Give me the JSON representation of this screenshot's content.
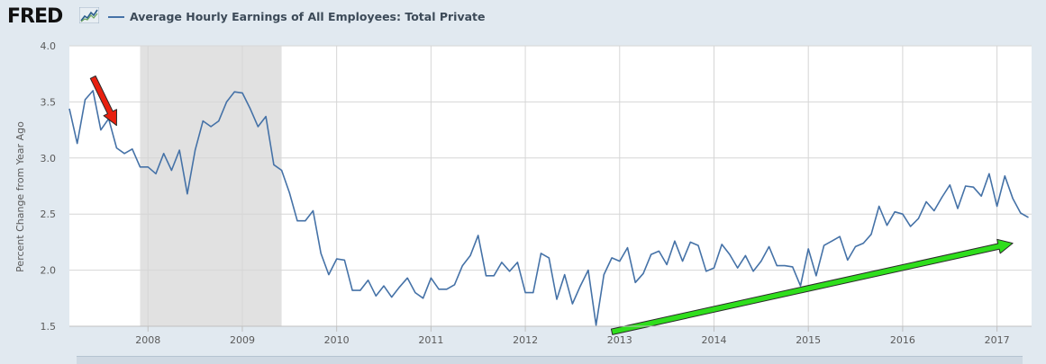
{
  "header": {
    "logo_text": "FRED",
    "logo_icon": "chart-line-icon",
    "legend_label": "Average Hourly Earnings of All Employees: Total Private",
    "legend_color": "#4572a7"
  },
  "chart_data": {
    "type": "line",
    "title": "Average Hourly Earnings of All Employees: Total Private",
    "ylabel": "Percent Change from Year Ago",
    "xlabel": "",
    "ylim": [
      1.5,
      4.0
    ],
    "y_ticks": [
      "1.5",
      "2.0",
      "2.5",
      "3.0",
      "3.5",
      "4.0"
    ],
    "x_ticks": [
      "2008",
      "2009",
      "2010",
      "2011",
      "2012",
      "2013",
      "2014",
      "2015",
      "2016",
      "2017"
    ],
    "grid": true,
    "series": [
      {
        "name": "Average Hourly Earnings of All Employees: Total Private",
        "color": "#4572a7",
        "points": [
          [
            "2007-03",
            3.44
          ],
          [
            "2007-04",
            3.13
          ],
          [
            "2007-05",
            3.52
          ],
          [
            "2007-06",
            3.6
          ],
          [
            "2007-07",
            3.25
          ],
          [
            "2007-08",
            3.35
          ],
          [
            "2007-09",
            3.09
          ],
          [
            "2007-10",
            3.04
          ],
          [
            "2007-11",
            3.08
          ],
          [
            "2007-12",
            2.92
          ],
          [
            "2008-01",
            2.92
          ],
          [
            "2008-02",
            2.86
          ],
          [
            "2008-03",
            3.04
          ],
          [
            "2008-04",
            2.89
          ],
          [
            "2008-05",
            3.07
          ],
          [
            "2008-06",
            2.68
          ],
          [
            "2008-07",
            3.07
          ],
          [
            "2008-08",
            3.33
          ],
          [
            "2008-09",
            3.28
          ],
          [
            "2008-10",
            3.33
          ],
          [
            "2008-11",
            3.5
          ],
          [
            "2008-12",
            3.59
          ],
          [
            "2009-01",
            3.58
          ],
          [
            "2009-02",
            3.44
          ],
          [
            "2009-03",
            3.28
          ],
          [
            "2009-04",
            3.37
          ],
          [
            "2009-05",
            2.94
          ],
          [
            "2009-06",
            2.89
          ],
          [
            "2009-07",
            2.69
          ],
          [
            "2009-08",
            2.44
          ],
          [
            "2009-09",
            2.44
          ],
          [
            "2009-10",
            2.53
          ],
          [
            "2009-11",
            2.15
          ],
          [
            "2009-12",
            1.96
          ],
          [
            "2010-01",
            2.1
          ],
          [
            "2010-02",
            2.09
          ],
          [
            "2010-03",
            1.82
          ],
          [
            "2010-04",
            1.82
          ],
          [
            "2010-05",
            1.91
          ],
          [
            "2010-06",
            1.77
          ],
          [
            "2010-07",
            1.86
          ],
          [
            "2010-08",
            1.76
          ],
          [
            "2010-09",
            1.85
          ],
          [
            "2010-10",
            1.93
          ],
          [
            "2010-11",
            1.8
          ],
          [
            "2010-12",
            1.75
          ],
          [
            "2011-01",
            1.93
          ],
          [
            "2011-02",
            1.83
          ],
          [
            "2011-03",
            1.83
          ],
          [
            "2011-04",
            1.87
          ],
          [
            "2011-05",
            2.04
          ],
          [
            "2011-06",
            2.13
          ],
          [
            "2011-07",
            2.31
          ],
          [
            "2011-08",
            1.95
          ],
          [
            "2011-09",
            1.95
          ],
          [
            "2011-10",
            2.07
          ],
          [
            "2011-11",
            1.99
          ],
          [
            "2011-12",
            2.07
          ],
          [
            "2012-01",
            1.8
          ],
          [
            "2012-02",
            1.8
          ],
          [
            "2012-03",
            2.15
          ],
          [
            "2012-04",
            2.11
          ],
          [
            "2012-05",
            1.74
          ],
          [
            "2012-06",
            1.96
          ],
          [
            "2012-07",
            1.7
          ],
          [
            "2012-08",
            1.86
          ],
          [
            "2012-09",
            2.0
          ],
          [
            "2012-10",
            1.51
          ],
          [
            "2012-11",
            1.96
          ],
          [
            "2012-12",
            2.11
          ],
          [
            "2013-01",
            2.08
          ],
          [
            "2013-02",
            2.2
          ],
          [
            "2013-03",
            1.89
          ],
          [
            "2013-04",
            1.97
          ],
          [
            "2013-05",
            2.14
          ],
          [
            "2013-06",
            2.17
          ],
          [
            "2013-07",
            2.05
          ],
          [
            "2013-08",
            2.26
          ],
          [
            "2013-09",
            2.08
          ],
          [
            "2013-10",
            2.25
          ],
          [
            "2013-11",
            2.22
          ],
          [
            "2013-12",
            1.99
          ],
          [
            "2014-01",
            2.02
          ],
          [
            "2014-02",
            2.23
          ],
          [
            "2014-03",
            2.14
          ],
          [
            "2014-04",
            2.02
          ],
          [
            "2014-05",
            2.13
          ],
          [
            "2014-06",
            1.99
          ],
          [
            "2014-07",
            2.08
          ],
          [
            "2014-08",
            2.21
          ],
          [
            "2014-09",
            2.04
          ],
          [
            "2014-10",
            2.04
          ],
          [
            "2014-11",
            2.03
          ],
          [
            "2014-12",
            1.86
          ],
          [
            "2015-01",
            2.19
          ],
          [
            "2015-02",
            1.95
          ],
          [
            "2015-03",
            2.22
          ],
          [
            "2015-04",
            2.26
          ],
          [
            "2015-05",
            2.3
          ],
          [
            "2015-06",
            2.09
          ],
          [
            "2015-07",
            2.21
          ],
          [
            "2015-08",
            2.24
          ],
          [
            "2015-09",
            2.32
          ],
          [
            "2015-10",
            2.57
          ],
          [
            "2015-11",
            2.4
          ],
          [
            "2015-12",
            2.52
          ],
          [
            "2016-01",
            2.5
          ],
          [
            "2016-02",
            2.39
          ],
          [
            "2016-03",
            2.46
          ],
          [
            "2016-04",
            2.61
          ],
          [
            "2016-05",
            2.53
          ],
          [
            "2016-06",
            2.65
          ],
          [
            "2016-07",
            2.76
          ],
          [
            "2016-08",
            2.55
          ],
          [
            "2016-09",
            2.75
          ],
          [
            "2016-10",
            2.74
          ],
          [
            "2016-11",
            2.66
          ],
          [
            "2016-12",
            2.86
          ],
          [
            "2017-01",
            2.57
          ],
          [
            "2017-02",
            2.84
          ],
          [
            "2017-03",
            2.64
          ],
          [
            "2017-04",
            2.51
          ],
          [
            "2017-05",
            2.47
          ]
        ]
      }
    ],
    "recession_shading": {
      "start": "2007-12",
      "end": "2009-06",
      "color": "#e1e1e1"
    },
    "annotations": [
      {
        "type": "arrow",
        "color": "#e8200f",
        "from": [
          "2007-06",
          3.72
        ],
        "to": [
          "2007-09",
          3.29
        ]
      },
      {
        "type": "arrow",
        "color": "#2fde1c",
        "from": [
          "2012-12",
          1.45
        ],
        "to": [
          "2017-03",
          2.24
        ]
      }
    ]
  }
}
